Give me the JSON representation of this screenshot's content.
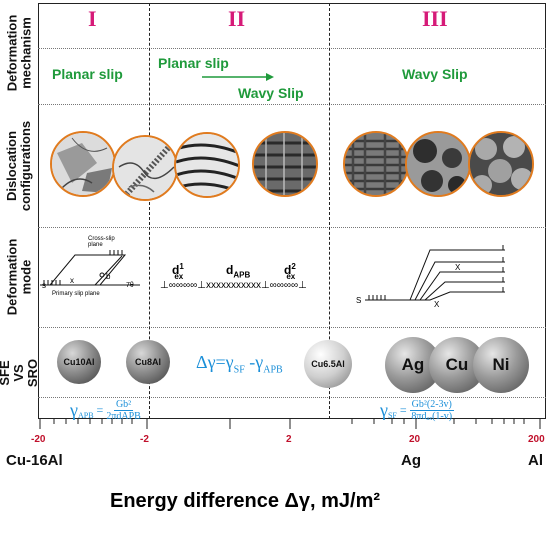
{
  "rows": {
    "mechanism": "Deformation mechanism",
    "configurations": "Dislocation configurations",
    "mode": "Deformation mode",
    "sro": "SFE VS SRO"
  },
  "regions": [
    "I",
    "II",
    "III"
  ],
  "mechanisms": {
    "region1": "Planar slip",
    "region2_top": "Planar slip",
    "region2_bottom": "Wavy Slip",
    "region3": "Wavy Slip"
  },
  "mode": {
    "cross_slip_plane": "Cross-slip plane",
    "primary_slip_plane": "Primary slip plane",
    "s": "s",
    "x": "x",
    "b": "b",
    "theta": "7θ",
    "dex1": "d",
    "dex1_sup": "1",
    "dex1_sub": "ex",
    "dapb": "d",
    "dapb_sub": "APB",
    "dex2": "d",
    "dex2_sup": "2",
    "dex2_sub": "ex",
    "chain": "⊥∞∞∞∞⊥xxxxxxxxxxx⊥∞∞∞∞⊥",
    "right_s": "S",
    "right_x1": "X",
    "right_x2": "X"
  },
  "sro": {
    "spheres": [
      "Cu10Al",
      "Cu8Al",
      "Cu6.5Al",
      "Ag",
      "Cu",
      "Ni"
    ],
    "equation": "Δγ=γSF -γAPB",
    "eq_lhs": "Δγ=γ",
    "eq_sf": "SF",
    "eq_mid": " -γ",
    "eq_apb": "APB"
  },
  "formulas": {
    "apb_gamma": "γ",
    "apb_sub": "APB",
    "apb_eq": "=",
    "apb_num": "Gb²",
    "apb_den": "2πdAPB",
    "sf_gamma": "γ",
    "sf_sub": "SF",
    "sf_eq": "=",
    "sf_num": "Gb²(2-3v)",
    "sf_den": "8πdₐₓ(1-v)"
  },
  "axis": {
    "ticks": [
      "-20",
      "-2",
      "2",
      "20",
      "200"
    ],
    "materials": [
      "Cu-16Al",
      "Ag",
      "Al"
    ],
    "title": "Energy difference Δγ, mJ/m²"
  }
}
